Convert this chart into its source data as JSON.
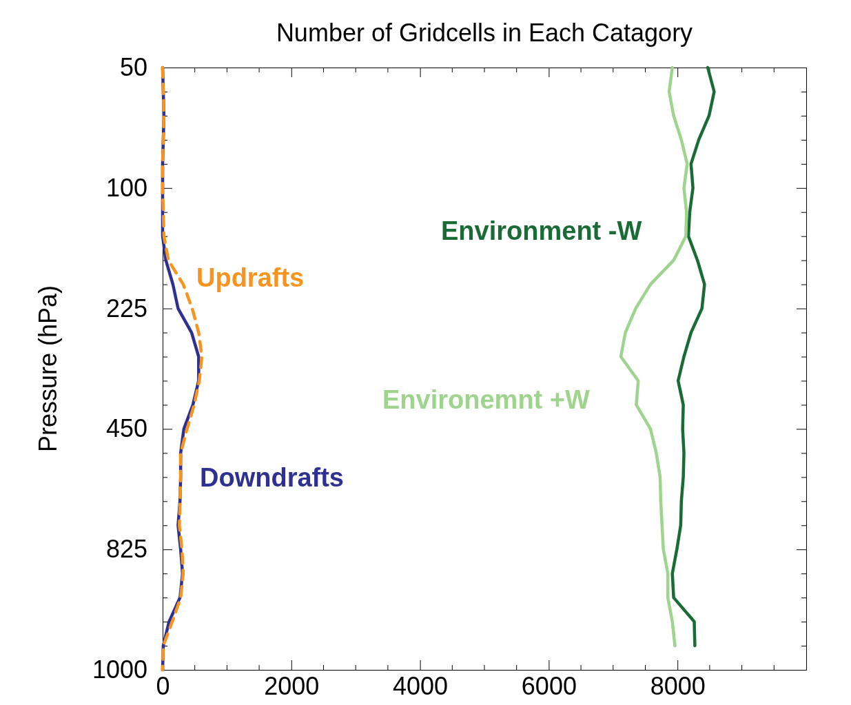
{
  "chart_data": {
    "type": "line",
    "orientation": "horizontal",
    "title": "Number of Gridcells in Each Catagory",
    "ylabel": "Pressure (hPa)",
    "xlim": [
      0,
      10000
    ],
    "xticks": [
      0,
      2000,
      4000,
      6000,
      8000
    ],
    "categories": [
      "50",
      null,
      null,
      null,
      null,
      "100",
      null,
      null,
      null,
      null,
      "225",
      null,
      null,
      null,
      null,
      "450",
      null,
      null,
      null,
      null,
      "825",
      null,
      null,
      null,
      null,
      "1000"
    ],
    "grid": false,
    "legend": false,
    "series": [
      {
        "name": "Downdrafts",
        "color": "#2e3192",
        "values": [
          0,
          10,
          20,
          10,
          0,
          0,
          0,
          0,
          50,
          160,
          240,
          450,
          560,
          560,
          470,
          330,
          280,
          280,
          270,
          240,
          280,
          310,
          270,
          100,
          10,
          0
        ]
      },
      {
        "name": "Updrafts",
        "color": "#f7941d",
        "line_style": "dashed",
        "values": [
          0,
          10,
          20,
          10,
          0,
          0,
          10,
          20,
          90,
          320,
          460,
          560,
          610,
          570,
          490,
          380,
          280,
          280,
          270,
          260,
          300,
          320,
          280,
          150,
          10,
          0
        ]
      },
      {
        "name": "Environment -W",
        "color": "#1a6b35",
        "values": [
          8470,
          8570,
          8490,
          8330,
          8210,
          8240,
          8190,
          8170,
          8310,
          8420,
          8380,
          8210,
          8100,
          8010,
          8090,
          8080,
          8100,
          8090,
          8060,
          8050,
          7990,
          7920,
          7940,
          8260,
          8270,
          null
        ]
      },
      {
        "name": "Environemnt +W",
        "color": "#9ed48e",
        "values": [
          7920,
          7870,
          7940,
          8060,
          8150,
          8100,
          8140,
          8130,
          7940,
          7580,
          7350,
          7190,
          7120,
          7390,
          7360,
          7580,
          7670,
          7730,
          7740,
          7760,
          7780,
          7850,
          7850,
          7920,
          7960,
          null
        ]
      }
    ]
  }
}
